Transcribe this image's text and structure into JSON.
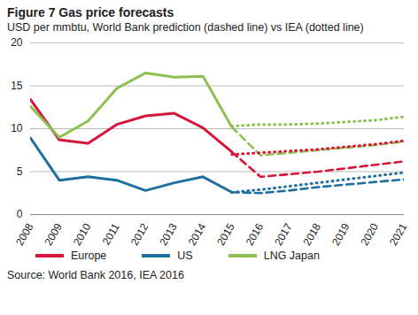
{
  "chart_data": {
    "type": "line",
    "title": "Figure 7 Gas price forecasts",
    "subtitle": "USD per mmbtu, World Bank prediction (dashed line) vs IEA (dotted line)",
    "source": "Source: World Bank 2016, IEA 2016",
    "x": [
      2008,
      2009,
      2010,
      2011,
      2012,
      2013,
      2014,
      2015,
      2016,
      2017,
      2018,
      2019,
      2020,
      2021
    ],
    "xlim": [
      2008,
      2021
    ],
    "xticks": [
      2008,
      2009,
      2010,
      2011,
      2012,
      2013,
      2014,
      2015,
      2016,
      2017,
      2018,
      2019,
      2020,
      2021
    ],
    "ylim": [
      0,
      20
    ],
    "yticks": [
      0,
      5,
      10,
      15,
      20
    ],
    "grid": true,
    "legend": "bottom",
    "series": [
      {
        "name": "Europe",
        "color": "#d7153a",
        "line_style": "solid",
        "values": [
          13.4,
          8.7,
          8.3,
          10.5,
          11.5,
          11.8,
          10.1,
          7.3,
          null,
          null,
          null,
          null,
          null,
          null
        ]
      },
      {
        "name": "US",
        "color": "#1f6fa0",
        "line_style": "solid",
        "values": [
          8.9,
          4.0,
          4.4,
          4.0,
          2.8,
          3.7,
          4.4,
          2.6,
          null,
          null,
          null,
          null,
          null,
          null
        ]
      },
      {
        "name": "LNG Japan",
        "color": "#8cc152",
        "line_style": "solid",
        "values": [
          12.6,
          9.0,
          10.9,
          14.7,
          16.5,
          16.0,
          16.1,
          10.2,
          null,
          null,
          null,
          null,
          null,
          null
        ]
      },
      {
        "name": "Europe",
        "color": "#d7153a",
        "line_style": "dashed",
        "values": [
          null,
          null,
          null,
          null,
          null,
          null,
          null,
          7.3,
          4.4,
          4.7,
          5.0,
          5.4,
          5.8,
          6.2
        ]
      },
      {
        "name": "US",
        "color": "#1f6fa0",
        "line_style": "dashed",
        "values": [
          null,
          null,
          null,
          null,
          null,
          null,
          null,
          2.6,
          2.5,
          2.8,
          3.2,
          3.5,
          3.8,
          4.1
        ]
      },
      {
        "name": "LNG Japan",
        "color": "#8cc152",
        "line_style": "dashed",
        "values": [
          null,
          null,
          null,
          null,
          null,
          null,
          null,
          10.2,
          6.9,
          7.2,
          7.5,
          7.8,
          8.1,
          8.5
        ]
      },
      {
        "name": "Europe",
        "color": "#d7153a",
        "line_style": "dotted",
        "values": [
          null,
          null,
          null,
          null,
          null,
          null,
          null,
          7.0,
          7.2,
          7.4,
          7.6,
          7.9,
          8.2,
          8.6
        ]
      },
      {
        "name": "US",
        "color": "#1f6fa0",
        "line_style": "dotted",
        "values": [
          null,
          null,
          null,
          null,
          null,
          null,
          null,
          2.6,
          2.9,
          3.3,
          3.7,
          4.1,
          4.5,
          4.9
        ]
      },
      {
        "name": "LNG Japan",
        "color": "#8cc152",
        "line_style": "dotted",
        "values": [
          null,
          null,
          null,
          null,
          null,
          null,
          null,
          10.3,
          10.5,
          10.5,
          10.6,
          10.8,
          11.0,
          11.4
        ]
      }
    ]
  }
}
